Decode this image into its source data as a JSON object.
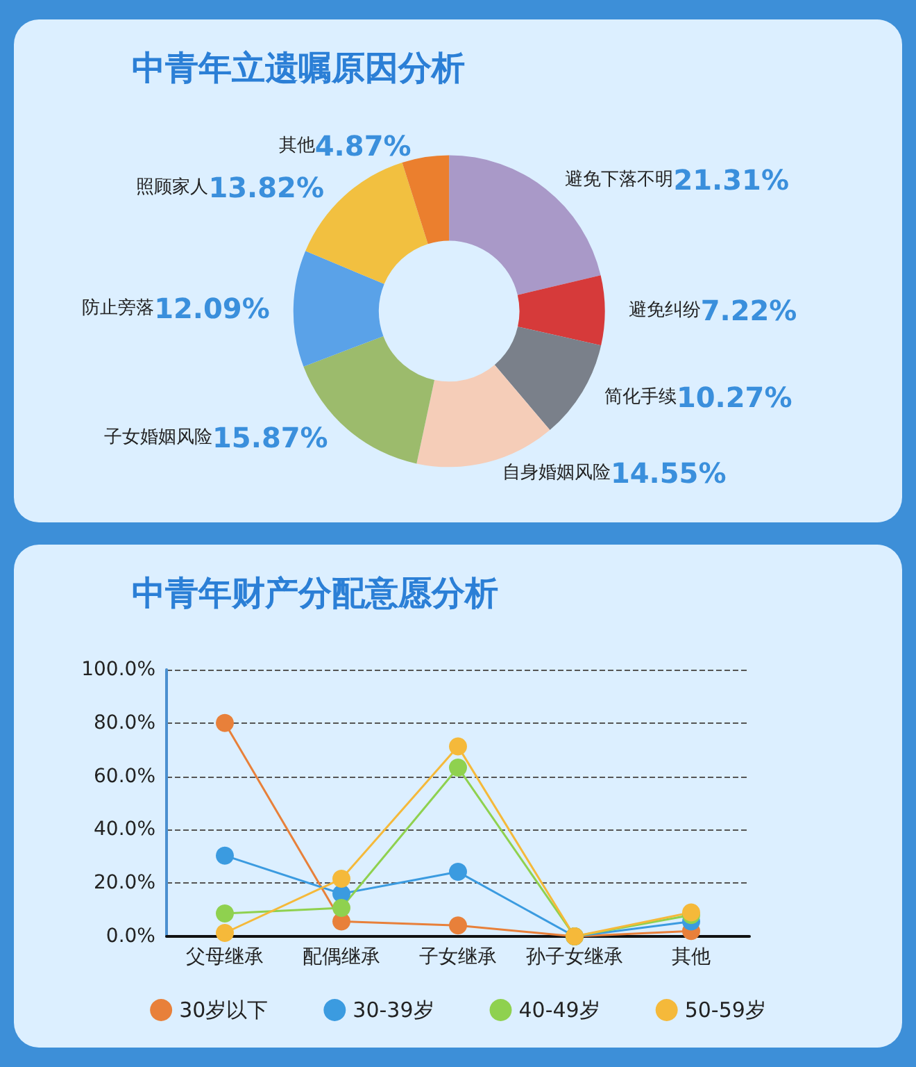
{
  "chart_data": [
    {
      "type": "donut",
      "title": "中青年立遗嘱原因分析",
      "categories": [
        "避免下落不明",
        "避免纠纷",
        "简化手续",
        "自身婚姻风险",
        "子女婚姻风险",
        "防止旁落",
        "照顾家人",
        "其他"
      ],
      "values": [
        21.31,
        7.22,
        10.27,
        14.55,
        15.87,
        12.09,
        13.82,
        4.87
      ],
      "colors": [
        "#a999c8",
        "#d63a3a",
        "#7a808a",
        "#f5cdb8",
        "#9cbb6c",
        "#5aa2e8",
        "#f2c040",
        "#eb7f2e"
      ],
      "value_labels": [
        "21.31%",
        "7.22%",
        "10.27%",
        "14.55%",
        "15.87%",
        "12.09%",
        "13.82%",
        "4.87%"
      ],
      "legend": false
    },
    {
      "type": "line",
      "title": "中青年财产分配意愿分析",
      "categories": [
        "父母继承",
        "配偶继承",
        "子女继承",
        "孙子女继承",
        "其他"
      ],
      "series": [
        {
          "name": "30岁以下",
          "color": "#e8803a",
          "values": [
            80,
            5.6,
            4.1,
            0,
            2
          ]
        },
        {
          "name": "30-39岁",
          "color": "#3b9be0",
          "values": [
            30.3,
            16,
            24.2,
            0,
            5.6
          ]
        },
        {
          "name": "40-49岁",
          "color": "#8fd14f",
          "values": [
            8.6,
            10.7,
            63.3,
            0,
            8
          ]
        },
        {
          "name": "50-59岁",
          "color": "#f5b93a",
          "values": [
            1.3,
            21.6,
            71.2,
            0,
            9
          ]
        }
      ],
      "ylim": [
        0,
        100
      ],
      "yticks": [
        {
          "value": 0,
          "label": "0.0%"
        },
        {
          "value": 20,
          "label": "20.0%"
        },
        {
          "value": 40,
          "label": "40.0%"
        },
        {
          "value": 60,
          "label": "60.0%"
        },
        {
          "value": 80,
          "label": "80.0%"
        },
        {
          "value": 100,
          "label": "100.0%"
        }
      ],
      "grid": "y",
      "legend": "bottom",
      "marker": "circle",
      "line_style": "solid"
    }
  ]
}
